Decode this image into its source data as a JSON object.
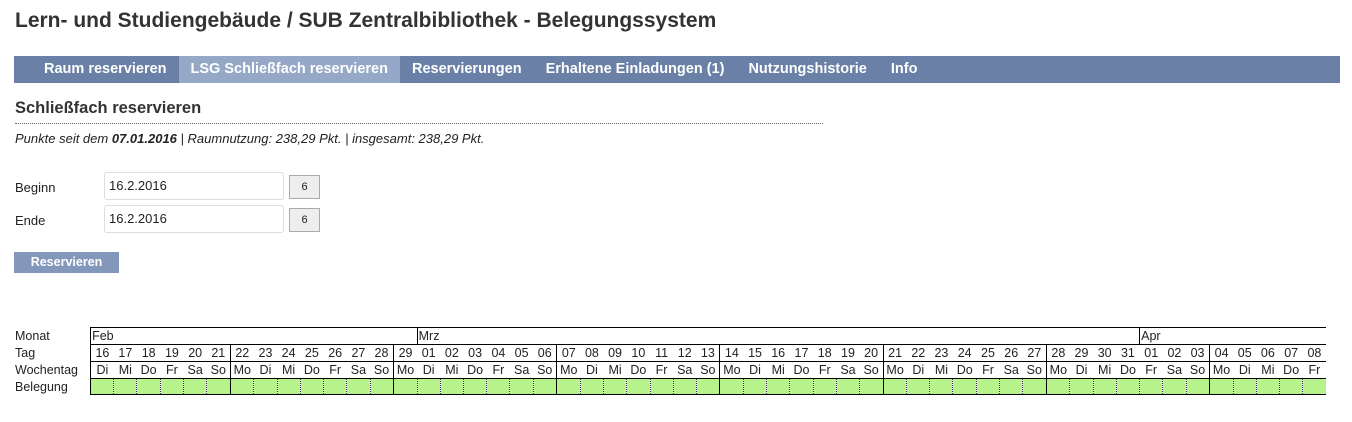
{
  "header": {
    "title": "Lern- und Studiengebäude / SUB Zentralbibliothek - Belegungssystem"
  },
  "nav": [
    "Raum reservieren",
    "LSG Schließfach reservieren",
    "Reservierungen",
    "Erhaltene Einladungen (1)",
    "Nutzungshistorie",
    "Info"
  ],
  "section": {
    "title": "Schließfach reservieren"
  },
  "points": {
    "prefix": "Punkte seit dem",
    "date": "07.01.2016",
    "rest": "| Raumnutzung: 238,29 Pkt. | insgesamt: 238,29 Pkt."
  },
  "form": {
    "begin_label": "Beginn",
    "begin_value": "16.2.2016",
    "begin_button": "6",
    "end_label": "Ende",
    "end_value": "16.2.2016",
    "end_button": "6",
    "submit": "Reservieren"
  },
  "calendar": {
    "row_labels": [
      "Monat",
      "Tag",
      "Wochentag",
      "Belegung"
    ],
    "months": [
      {
        "label": "Feb",
        "days": [
          "16",
          "17",
          "18",
          "19",
          "20",
          "21",
          "22",
          "23",
          "24",
          "25",
          "26",
          "27",
          "28",
          "29"
        ],
        "weekdays": [
          "Di",
          "Mi",
          "Do",
          "Fr",
          "Sa",
          "So",
          "Mo",
          "Di",
          "Mi",
          "Do",
          "Fr",
          "Sa",
          "So",
          "Mo"
        ]
      },
      {
        "label": "Mrz",
        "days": [
          "01",
          "02",
          "03",
          "04",
          "05",
          "06",
          "07",
          "08",
          "09",
          "10",
          "11",
          "12",
          "13",
          "14",
          "15",
          "16",
          "17",
          "18",
          "19",
          "20",
          "21",
          "22",
          "23",
          "24",
          "25",
          "26",
          "27",
          "28",
          "29",
          "30",
          "31"
        ],
        "weekdays": [
          "Di",
          "Mi",
          "Do",
          "Fr",
          "Sa",
          "So",
          "Mo",
          "Di",
          "Mi",
          "Do",
          "Fr",
          "Sa",
          "So",
          "Mo",
          "Di",
          "Mi",
          "Do",
          "Fr",
          "Sa",
          "So",
          "Mo",
          "Di",
          "Mi",
          "Do",
          "Fr",
          "Sa",
          "So",
          "Mo",
          "Di",
          "Mi",
          "Do"
        ]
      },
      {
        "label": "Apr",
        "days": [
          "01",
          "02",
          "03",
          "04",
          "05",
          "06",
          "07",
          "08"
        ],
        "weekdays": [
          "Fr",
          "Sa",
          "So",
          "Mo",
          "Di",
          "Mi",
          "Do",
          "Fr"
        ]
      }
    ]
  }
}
